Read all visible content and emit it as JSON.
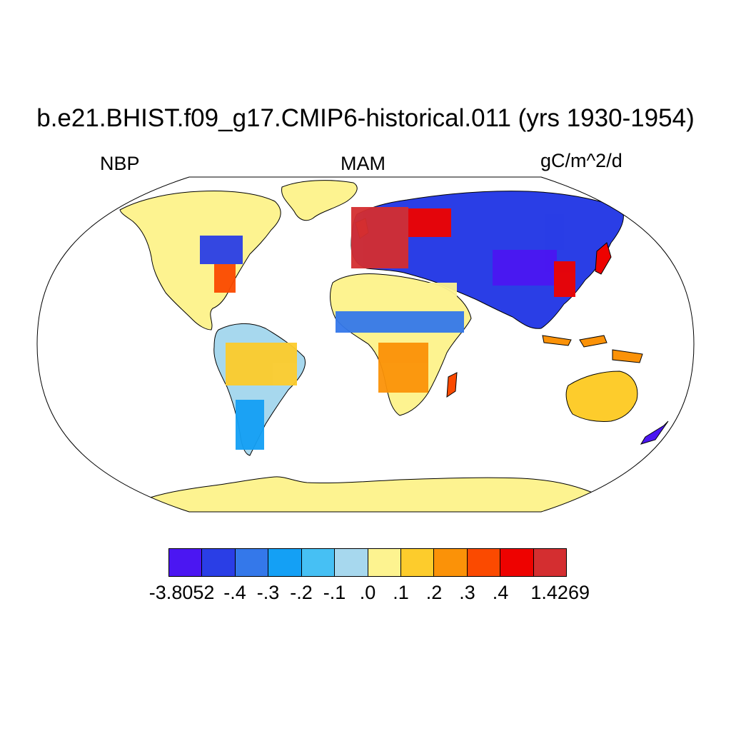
{
  "title": "b.e21.BHIST.f09_g17.CMIP6-historical.011 (yrs 1930-1954)",
  "variable": "NBP",
  "season": "MAM",
  "units": "gC/m^2/d",
  "colorbar": {
    "colors": [
      "#4b16f2",
      "#2a3ee6",
      "#3478ea",
      "#14a0f5",
      "#46c0f4",
      "#a7d8ee",
      "#fdf390",
      "#fdcc2c",
      "#fb9208",
      "#fb4a00",
      "#ee0200",
      "#d42e30"
    ],
    "labels": [
      "-3.8052",
      "-.4",
      "-.3",
      "-.2",
      "-.1",
      ".0",
      ".1",
      ".2",
      ".3",
      ".4",
      "1.4269"
    ]
  },
  "colors": {
    "coastline": "#000000",
    "ocean": "#ffffff",
    "antarctica": "#fdf390"
  }
}
